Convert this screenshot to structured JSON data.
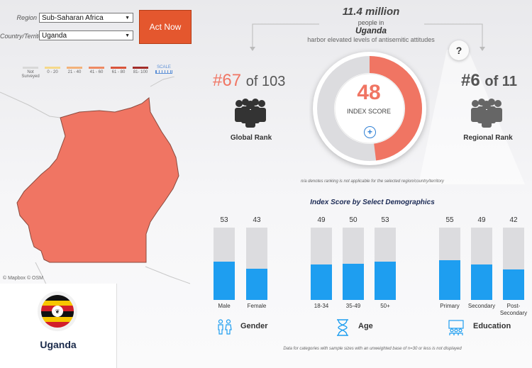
{
  "controls": {
    "region_label": "Region",
    "region_value": "Sub-Saharan Africa",
    "country_label": "Country/Territory",
    "country_value": "Uganda",
    "action_button": "Act Now"
  },
  "legend": {
    "items": [
      {
        "label_line1": "Not",
        "label_line2": "Surveyed",
        "color": "#d8d8d8"
      },
      {
        "label_line1": "0 - 20",
        "label_line2": "",
        "color": "#f5d98a"
      },
      {
        "label_line1": "21 - 40",
        "label_line2": "",
        "color": "#f3b27a"
      },
      {
        "label_line1": "41 - 60",
        "label_line2": "",
        "color": "#ee8a63"
      },
      {
        "label_line1": "61 - 80",
        "label_line2": "",
        "color": "#d9543a"
      },
      {
        "label_line1": "81- 100",
        "label_line2": "",
        "color": "#a32d2a"
      }
    ],
    "scale_label": "SCALE"
  },
  "map": {
    "attribution": "© Mapbox © OSM",
    "fill_color": "#f07563"
  },
  "country": {
    "name": "Uganda"
  },
  "header": {
    "population": "11.4 million",
    "people_in": "people in",
    "country": "Uganda",
    "description": "harbor elevated levels of antisemitic attitudes"
  },
  "score": {
    "value": 48,
    "label": "INDEX SCORE",
    "accent": "#f07563"
  },
  "global_rank": {
    "rank": "#67",
    "of_text": "of 103",
    "label": "Global Rank"
  },
  "regional_rank": {
    "rank": "#6",
    "of_text": "of 11",
    "label": "Regional Rank"
  },
  "notes": {
    "na_note": "n/a denotes ranking is not applicable for the selected region/country/territory",
    "footnote": "Data for categories with sample sizes with an unweighted base of n=30 or less is not displayed"
  },
  "demographics": {
    "title": "Index Score by Select Demographics",
    "groups": [
      {
        "label": "Gender",
        "bars": [
          {
            "category": "Male",
            "value": 53
          },
          {
            "category": "Female",
            "value": 43
          }
        ]
      },
      {
        "label": "Age",
        "bars": [
          {
            "category": "18-34",
            "value": 49
          },
          {
            "category": "35-49",
            "value": 50
          },
          {
            "category": "50+",
            "value": 53
          }
        ]
      },
      {
        "label": "Education",
        "bars": [
          {
            "category": "Primary",
            "value": 55
          },
          {
            "category": "Secondary",
            "value": 49
          },
          {
            "category": "Post-Secondary",
            "value": 42
          }
        ]
      }
    ]
  },
  "icons": {
    "help": "?",
    "plus": "+"
  }
}
